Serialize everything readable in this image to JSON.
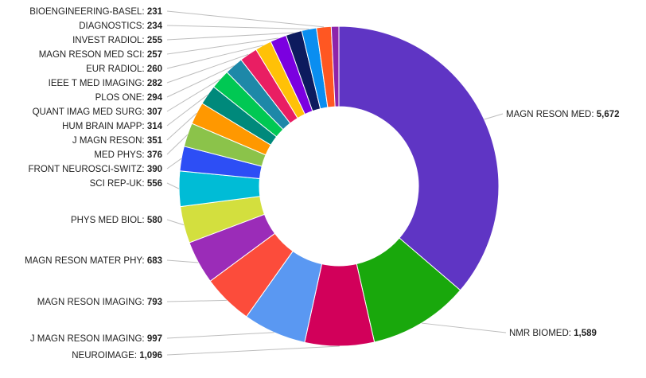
{
  "chart_data": {
    "type": "pie",
    "donut": true,
    "title": "",
    "slices": [
      {
        "label": "MAGN RESON MED",
        "value": 5672,
        "value_text": "5,672",
        "color": "#5f35c4"
      },
      {
        "label": "NMR BIOMED",
        "value": 1589,
        "value_text": "1,589",
        "color": "#19a80c"
      },
      {
        "label": "NEUROIMAGE",
        "value": 1096,
        "value_text": "1,096",
        "color": "#d2005a"
      },
      {
        "label": "J MAGN RESON IMAGING",
        "value": 997,
        "value_text": "997",
        "color": "#5a98f2"
      },
      {
        "label": "MAGN RESON IMAGING",
        "value": 793,
        "value_text": "793",
        "color": "#fc4c3b"
      },
      {
        "label": "MAGN RESON MATER PHY",
        "value": 683,
        "value_text": "683",
        "color": "#9b2cb8"
      },
      {
        "label": "PHYS MED BIOL",
        "value": 580,
        "value_text": "580",
        "color": "#d3df3e"
      },
      {
        "label": "SCI REP-UK",
        "value": 556,
        "value_text": "556",
        "color": "#00bcd6"
      },
      {
        "label": "FRONT NEUROSCI-SWITZ",
        "value": 390,
        "value_text": "390",
        "color": "#2d4ef5"
      },
      {
        "label": "MED PHYS",
        "value": 376,
        "value_text": "376",
        "color": "#8bc34a"
      },
      {
        "label": "J MAGN RESON",
        "value": 351,
        "value_text": "351",
        "color": "#ff9800"
      },
      {
        "label": "HUM BRAIN MAPP",
        "value": 314,
        "value_text": "314",
        "color": "#00897b"
      },
      {
        "label": "QUANT IMAG MED SURG",
        "value": 307,
        "value_text": "307",
        "color": "#00c853"
      },
      {
        "label": "PLOS ONE",
        "value": 294,
        "value_text": "294",
        "color": "#1e88a8"
      },
      {
        "label": "IEEE T MED IMAGING",
        "value": 282,
        "value_text": "282",
        "color": "#e91e63"
      },
      {
        "label": "EUR RADIOL",
        "value": 260,
        "value_text": "260",
        "color": "#ffc107"
      },
      {
        "label": "MAGN RESON MED SCI",
        "value": 257,
        "value_text": "257",
        "color": "#7b00e0"
      },
      {
        "label": "INVEST RADIOL",
        "value": 255,
        "value_text": "255",
        "color": "#0d1b5e"
      },
      {
        "label": "DIAGNOSTICS",
        "value": 234,
        "value_text": "234",
        "color": "#0a8ef0"
      },
      {
        "label": "BIOENGINEERING-BASEL",
        "value": 231,
        "value_text": "231",
        "color": "#ff5722"
      },
      {
        "label": "",
        "value": 120,
        "value_text": "",
        "color": "#8e24aa"
      }
    ]
  }
}
